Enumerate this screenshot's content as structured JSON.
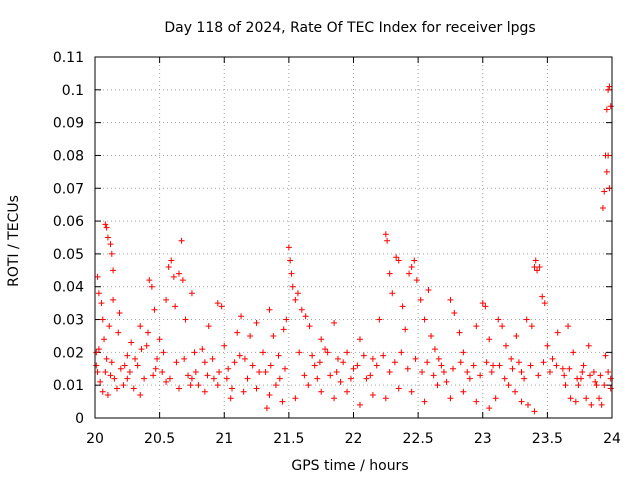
{
  "chart_data": {
    "type": "scatter",
    "title": "Day 118 of 2024, Rate Of TEC Index for receiver lpgs",
    "xlabel": "GPS time / hours",
    "ylabel": "ROTI / TECUs",
    "xlim": [
      20,
      24
    ],
    "ylim": [
      0,
      0.11
    ],
    "x_ticks": [
      20,
      20.5,
      21,
      21.5,
      22,
      22.5,
      23,
      23.5,
      24
    ],
    "x_tick_labels": [
      "20",
      "20.5",
      "21",
      "21.5",
      "22",
      "22.5",
      "23",
      "23.5",
      "24"
    ],
    "y_ticks": [
      0,
      0.01,
      0.02,
      0.03,
      0.04,
      0.05,
      0.06,
      0.07,
      0.08,
      0.09,
      0.1,
      0.11
    ],
    "y_tick_labels": [
      "0",
      "0.01",
      "0.02",
      "0.03",
      "0.04",
      "0.05",
      "0.06",
      "0.07",
      "0.08",
      "0.09",
      "0.1",
      "0.11"
    ],
    "grid": true,
    "marker": "+",
    "color": "#ff0000",
    "series": [
      {
        "name": "ROTI",
        "points": [
          [
            20.02,
            0.043
          ],
          [
            20.03,
            0.038
          ],
          [
            20.05,
            0.035
          ],
          [
            20.06,
            0.03
          ],
          [
            20.07,
            0.024
          ],
          [
            20.08,
            0.059
          ],
          [
            20.09,
            0.058
          ],
          [
            20.1,
            0.055
          ],
          [
            20.12,
            0.053
          ],
          [
            20.13,
            0.05
          ],
          [
            20.14,
            0.045
          ],
          [
            20.14,
            0.036
          ],
          [
            20.04,
            0.011
          ],
          [
            20.06,
            0.008
          ],
          [
            20.08,
            0.014
          ],
          [
            20.1,
            0.007
          ],
          [
            20.15,
            0.012
          ],
          [
            20.18,
            0.026
          ],
          [
            20.2,
            0.015
          ],
          [
            20.22,
            0.01
          ],
          [
            20.25,
            0.019
          ],
          [
            20.28,
            0.023
          ],
          [
            20.3,
            0.009
          ],
          [
            20.33,
            0.016
          ],
          [
            20.35,
            0.028
          ],
          [
            20.38,
            0.012
          ],
          [
            20.4,
            0.022
          ],
          [
            20.42,
            0.042
          ],
          [
            20.44,
            0.04
          ],
          [
            20.46,
            0.033
          ],
          [
            20.48,
            0.018
          ],
          [
            20.5,
            0.024
          ],
          [
            20.52,
            0.014
          ],
          [
            20.55,
            0.036
          ],
          [
            20.57,
            0.046
          ],
          [
            20.59,
            0.048
          ],
          [
            20.61,
            0.043
          ],
          [
            20.62,
            0.034
          ],
          [
            20.65,
            0.044
          ],
          [
            20.67,
            0.054
          ],
          [
            20.68,
            0.042
          ],
          [
            20.7,
            0.03
          ],
          [
            20.72,
            0.013
          ],
          [
            20.75,
            0.038
          ],
          [
            20.77,
            0.02
          ],
          [
            20.8,
            0.01
          ],
          [
            20.85,
            0.017
          ],
          [
            20.88,
            0.028
          ],
          [
            20.92,
            0.012
          ],
          [
            20.95,
            0.035
          ],
          [
            20.98,
            0.034
          ],
          [
            21.0,
            0.022
          ],
          [
            21.03,
            0.015
          ],
          [
            21.06,
            0.009
          ],
          [
            21.1,
            0.026
          ],
          [
            21.13,
            0.031
          ],
          [
            21.16,
            0.018
          ],
          [
            21.2,
            0.025
          ],
          [
            21.25,
            0.029
          ],
          [
            21.3,
            0.02
          ],
          [
            21.32,
            0.014
          ],
          [
            21.35,
            0.033
          ],
          [
            21.38,
            0.025
          ],
          [
            21.4,
            0.01
          ],
          [
            21.43,
            0.012
          ],
          [
            21.46,
            0.027
          ],
          [
            21.48,
            0.03
          ],
          [
            21.5,
            0.052
          ],
          [
            21.51,
            0.048
          ],
          [
            21.52,
            0.044
          ],
          [
            21.53,
            0.04
          ],
          [
            21.55,
            0.036
          ],
          [
            21.57,
            0.038
          ],
          [
            21.6,
            0.033
          ],
          [
            21.63,
            0.031
          ],
          [
            21.66,
            0.028
          ],
          [
            21.7,
            0.016
          ],
          [
            21.72,
            0.012
          ],
          [
            21.75,
            0.024
          ],
          [
            21.78,
            0.021
          ],
          [
            21.82,
            0.013
          ],
          [
            21.85,
            0.029
          ],
          [
            21.88,
            0.018
          ],
          [
            21.9,
            0.011
          ],
          [
            21.95,
            0.02
          ],
          [
            22.0,
            0.015
          ],
          [
            22.05,
            0.024
          ],
          [
            22.1,
            0.012
          ],
          [
            22.15,
            0.018
          ],
          [
            22.2,
            0.03
          ],
          [
            22.25,
            0.056
          ],
          [
            22.26,
            0.054
          ],
          [
            22.28,
            0.044
          ],
          [
            22.3,
            0.038
          ],
          [
            22.33,
            0.049
          ],
          [
            22.35,
            0.048
          ],
          [
            22.38,
            0.034
          ],
          [
            22.4,
            0.027
          ],
          [
            22.43,
            0.044
          ],
          [
            22.45,
            0.046
          ],
          [
            22.47,
            0.048
          ],
          [
            22.49,
            0.042
          ],
          [
            22.52,
            0.036
          ],
          [
            22.55,
            0.03
          ],
          [
            22.58,
            0.039
          ],
          [
            22.6,
            0.025
          ],
          [
            22.63,
            0.021
          ],
          [
            22.66,
            0.018
          ],
          [
            22.7,
            0.014
          ],
          [
            22.75,
            0.036
          ],
          [
            22.78,
            0.032
          ],
          [
            22.82,
            0.026
          ],
          [
            22.85,
            0.02
          ],
          [
            22.9,
            0.012
          ],
          [
            22.95,
            0.028
          ],
          [
            23.0,
            0.035
          ],
          [
            23.02,
            0.034
          ],
          [
            23.05,
            0.024
          ],
          [
            23.08,
            0.016
          ],
          [
            23.12,
            0.03
          ],
          [
            23.15,
            0.028
          ],
          [
            23.18,
            0.022
          ],
          [
            23.22,
            0.018
          ],
          [
            23.26,
            0.025
          ],
          [
            23.3,
            0.014
          ],
          [
            23.34,
            0.03
          ],
          [
            23.38,
            0.028
          ],
          [
            23.4,
            0.046
          ],
          [
            23.41,
            0.048
          ],
          [
            23.42,
            0.045
          ],
          [
            23.44,
            0.046
          ],
          [
            23.46,
            0.037
          ],
          [
            23.48,
            0.035
          ],
          [
            23.5,
            0.022
          ],
          [
            23.54,
            0.018
          ],
          [
            23.58,
            0.026
          ],
          [
            23.62,
            0.015
          ],
          [
            23.66,
            0.028
          ],
          [
            23.7,
            0.02
          ],
          [
            23.74,
            0.01
          ],
          [
            23.78,
            0.016
          ],
          [
            23.82,
            0.022
          ],
          [
            23.86,
            0.014
          ],
          [
            23.9,
            0.006
          ],
          [
            23.93,
            0.064
          ],
          [
            23.94,
            0.069
          ],
          [
            23.95,
            0.08
          ],
          [
            23.96,
            0.075
          ],
          [
            23.97,
            0.08
          ],
          [
            23.98,
            0.07
          ],
          [
            23.96,
            0.094
          ],
          [
            23.98,
            0.101
          ],
          [
            23.99,
            0.095
          ],
          [
            23.97,
            0.1
          ],
          [
            23.95,
            0.019
          ],
          [
            23.97,
            0.014
          ],
          [
            23.99,
            0.012
          ],
          [
            23.92,
            0.004
          ],
          [
            23.88,
            0.01
          ],
          [
            23.84,
            0.004
          ],
          [
            23.8,
            0.006
          ],
          [
            23.76,
            0.012
          ],
          [
            23.72,
            0.005
          ],
          [
            23.68,
            0.006
          ],
          [
            23.64,
            0.01
          ],
          [
            23.4,
            0.002
          ],
          [
            23.35,
            0.004
          ],
          [
            23.3,
            0.005
          ],
          [
            23.25,
            0.008
          ],
          [
            23.2,
            0.01
          ],
          [
            23.1,
            0.006
          ],
          [
            23.05,
            0.003
          ],
          [
            22.95,
            0.005
          ],
          [
            22.85,
            0.008
          ],
          [
            22.75,
            0.006
          ],
          [
            22.65,
            0.01
          ],
          [
            22.55,
            0.005
          ],
          [
            22.45,
            0.008
          ],
          [
            22.35,
            0.009
          ],
          [
            22.25,
            0.006
          ],
          [
            22.15,
            0.007
          ],
          [
            22.05,
            0.004
          ],
          [
            21.95,
            0.008
          ],
          [
            21.85,
            0.006
          ],
          [
            21.75,
            0.008
          ],
          [
            21.65,
            0.01
          ],
          [
            21.55,
            0.006
          ],
          [
            21.45,
            0.005
          ],
          [
            21.35,
            0.007
          ],
          [
            21.33,
            0.003
          ],
          [
            21.25,
            0.009
          ],
          [
            21.15,
            0.008
          ],
          [
            21.05,
            0.006
          ],
          [
            20.95,
            0.01
          ],
          [
            20.85,
            0.008
          ],
          [
            20.75,
            0.012
          ],
          [
            20.65,
            0.009
          ],
          [
            20.55,
            0.011
          ],
          [
            20.45,
            0.013
          ],
          [
            20.35,
            0.007
          ],
          [
            20.25,
            0.012
          ],
          [
            20.17,
            0.009
          ],
          [
            20.12,
            0.013
          ],
          [
            20.02,
            0.014
          ],
          [
            20.01,
            0.02
          ],
          [
            20.01,
            0.016
          ],
          [
            20.03,
            0.021
          ],
          [
            20.09,
            0.018
          ],
          [
            20.11,
            0.028
          ],
          [
            20.13,
            0.017
          ],
          [
            20.19,
            0.032
          ],
          [
            20.23,
            0.016
          ],
          [
            20.27,
            0.014
          ],
          [
            20.31,
            0.018
          ],
          [
            20.36,
            0.021
          ],
          [
            20.41,
            0.026
          ],
          [
            20.47,
            0.015
          ],
          [
            20.53,
            0.02
          ],
          [
            20.58,
            0.012
          ],
          [
            20.63,
            0.017
          ],
          [
            20.69,
            0.018
          ],
          [
            20.74,
            0.01
          ],
          [
            20.78,
            0.014
          ],
          [
            20.83,
            0.021
          ],
          [
            20.87,
            0.013
          ],
          [
            20.91,
            0.018
          ],
          [
            20.96,
            0.014
          ],
          [
            21.02,
            0.012
          ],
          [
            21.08,
            0.017
          ],
          [
            21.12,
            0.019
          ],
          [
            21.18,
            0.012
          ],
          [
            21.22,
            0.016
          ],
          [
            21.27,
            0.014
          ],
          [
            21.36,
            0.016
          ],
          [
            21.42,
            0.019
          ],
          [
            21.47,
            0.015
          ],
          [
            21.58,
            0.02
          ],
          [
            21.62,
            0.013
          ],
          [
            21.68,
            0.019
          ],
          [
            21.74,
            0.017
          ],
          [
            21.8,
            0.02
          ],
          [
            21.87,
            0.014
          ],
          [
            21.92,
            0.017
          ],
          [
            21.98,
            0.012
          ],
          [
            22.03,
            0.016
          ],
          [
            22.08,
            0.019
          ],
          [
            22.13,
            0.013
          ],
          [
            22.18,
            0.016
          ],
          [
            22.23,
            0.019
          ],
          [
            22.28,
            0.014
          ],
          [
            22.32,
            0.017
          ],
          [
            22.37,
            0.02
          ],
          [
            22.42,
            0.015
          ],
          [
            22.48,
            0.018
          ],
          [
            22.53,
            0.014
          ],
          [
            22.57,
            0.017
          ],
          [
            22.62,
            0.013
          ],
          [
            22.68,
            0.016
          ],
          [
            22.72,
            0.011
          ],
          [
            22.77,
            0.015
          ],
          [
            22.83,
            0.017
          ],
          [
            22.88,
            0.014
          ],
          [
            22.93,
            0.016
          ],
          [
            22.98,
            0.013
          ],
          [
            23.03,
            0.017
          ],
          [
            23.07,
            0.014
          ],
          [
            23.13,
            0.016
          ],
          [
            23.17,
            0.012
          ],
          [
            23.23,
            0.015
          ],
          [
            23.28,
            0.017
          ],
          [
            23.32,
            0.012
          ],
          [
            23.37,
            0.016
          ],
          [
            23.43,
            0.013
          ],
          [
            23.47,
            0.017
          ],
          [
            23.52,
            0.014
          ],
          [
            23.57,
            0.016
          ],
          [
            23.63,
            0.013
          ],
          [
            23.67,
            0.015
          ],
          [
            23.73,
            0.012
          ],
          [
            23.77,
            0.014
          ],
          [
            23.83,
            0.013
          ],
          [
            23.87,
            0.011
          ],
          [
            23.91,
            0.013
          ],
          [
            23.94,
            0.01
          ],
          [
            23.99,
            0.009
          ]
        ]
      }
    ]
  }
}
